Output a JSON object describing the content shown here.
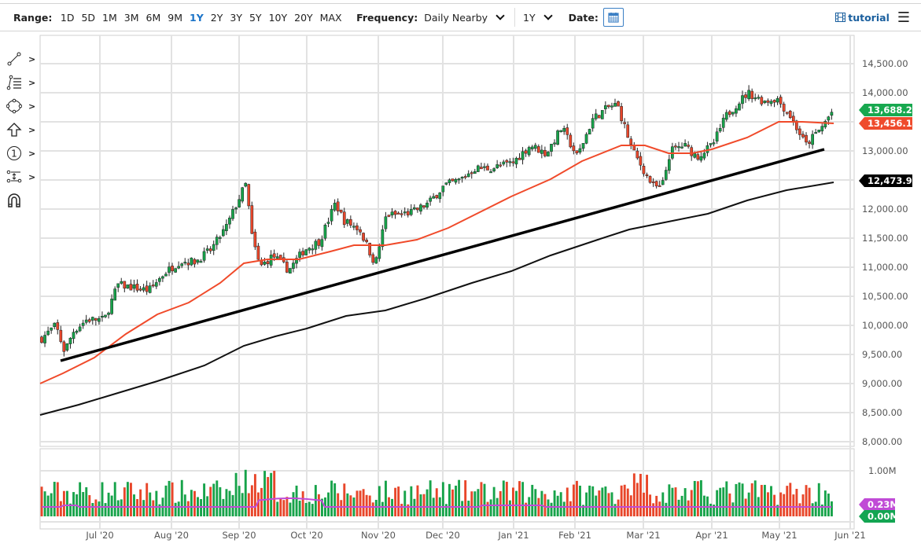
{
  "toolbar": {
    "range_label": "Range:",
    "ranges": [
      "1D",
      "5D",
      "1M",
      "3M",
      "6M",
      "9M",
      "1Y",
      "2Y",
      "3Y",
      "5Y",
      "10Y",
      "20Y",
      "MAX"
    ],
    "active_range": "1Y",
    "frequency_label": "Frequency:",
    "frequency_value": "Daily Nearby",
    "period_value": "1Y",
    "date_label": "Date:",
    "calendar_icon": "calendar-icon",
    "tutorial_label": "tutorial",
    "tutorial_icon": "film-icon",
    "menu_icon": "hamburger-menu-icon"
  },
  "left_tools": [
    {
      "name": "trendline-tool",
      "icon": "line-segment-icon"
    },
    {
      "name": "fibonacci-tool",
      "icon": "fib-lines-icon"
    },
    {
      "name": "shapes-tool",
      "icon": "ellipse-nodes-icon"
    },
    {
      "name": "arrow-tool",
      "icon": "up-arrow-icon"
    },
    {
      "name": "annotation-tool",
      "icon": "numbered-circle-icon"
    },
    {
      "name": "measure-tool",
      "icon": "measure-icon"
    },
    {
      "name": "magnet-tool",
      "icon": "magnet-icon"
    }
  ],
  "colors": {
    "up": "#17a34a",
    "down": "#e8462a",
    "ma_short": "#f04a2a",
    "ma_long": "#111111",
    "trendline": "#000000",
    "volume_ma": "#c04bd6",
    "grid": "#e2e2e2",
    "last_price_tag": "#17a84f",
    "ma_short_tag": "#ef4b2c",
    "ma_long_tag": "#000000",
    "volume_ma_tag": "#c04bd6",
    "volume_tag": "#13a552"
  },
  "chart_data": {
    "type": "candlestick",
    "title": "",
    "instrument_frequency": "Daily Nearby",
    "range": "1Y",
    "xlabel": "",
    "ylabel": "",
    "ylim": [
      8000,
      14800
    ],
    "y_ticks": [
      "14,500.00",
      "14,000.00",
      "13,500.00",
      "13,000.00",
      "12,500.00",
      "12,000.00",
      "11,500.00",
      "11,000.00",
      "10,500.00",
      "10,000.00",
      "9,500.00",
      "9,000.00",
      "8,500.00",
      "8,000.00"
    ],
    "x_ticks": [
      "Jul '20",
      "Aug '20",
      "Sep '20",
      "Oct '20",
      "Nov '20",
      "Dec '20",
      "Jan '21",
      "Feb '21",
      "Mar '21",
      "Apr '21",
      "May '21",
      "Jun '21"
    ],
    "grid": true,
    "price_tags": [
      {
        "label": "13,688.25",
        "series": "last price",
        "value": 13688.25
      },
      {
        "label": "13,456.13",
        "series": "short moving average",
        "value": 13456.13
      },
      {
        "label": "12,473.92",
        "series": "long moving average",
        "value": 12473.92
      }
    ],
    "close_path": [
      [
        "2020-06-01",
        9750
      ],
      [
        "2020-06-08",
        10000
      ],
      [
        "2020-06-12",
        9550
      ],
      [
        "2020-06-16",
        9900
      ],
      [
        "2020-06-22",
        10100
      ],
      [
        "2020-06-30",
        10100
      ],
      [
        "2020-07-06",
        10700
      ],
      [
        "2020-07-13",
        10650
      ],
      [
        "2020-07-20",
        10600
      ],
      [
        "2020-07-27",
        10900
      ],
      [
        "2020-08-03",
        11100
      ],
      [
        "2020-08-10",
        11100
      ],
      [
        "2020-08-17",
        11300
      ],
      [
        "2020-08-24",
        11700
      ],
      [
        "2020-08-31",
        12300
      ],
      [
        "2020-09-02",
        12450
      ],
      [
        "2020-09-04",
        11600
      ],
      [
        "2020-09-08",
        11000
      ],
      [
        "2020-09-14",
        11200
      ],
      [
        "2020-09-21",
        10950
      ],
      [
        "2020-09-28",
        11300
      ],
      [
        "2020-10-05",
        11450
      ],
      [
        "2020-10-12",
        12100
      ],
      [
        "2020-10-16",
        11800
      ],
      [
        "2020-10-23",
        11650
      ],
      [
        "2020-10-30",
        11050
      ],
      [
        "2020-11-04",
        11900
      ],
      [
        "2020-11-09",
        11900
      ],
      [
        "2020-11-16",
        11950
      ],
      [
        "2020-11-23",
        12100
      ],
      [
        "2020-11-30",
        12400
      ],
      [
        "2020-12-07",
        12500
      ],
      [
        "2020-12-14",
        12700
      ],
      [
        "2020-12-21",
        12700
      ],
      [
        "2020-12-31",
        12800
      ],
      [
        "2021-01-08",
        13100
      ],
      [
        "2021-01-15",
        12950
      ],
      [
        "2021-01-22",
        13400
      ],
      [
        "2021-01-29",
        12900
      ],
      [
        "2021-02-05",
        13550
      ],
      [
        "2021-02-12",
        13750
      ],
      [
        "2021-02-16",
        13800
      ],
      [
        "2021-02-23",
        13000
      ],
      [
        "2021-02-26",
        12800
      ],
      [
        "2021-03-04",
        12400
      ],
      [
        "2021-03-08",
        12350
      ],
      [
        "2021-03-12",
        13000
      ],
      [
        "2021-03-18",
        13100
      ],
      [
        "2021-03-24",
        12900
      ],
      [
        "2021-03-31",
        13100
      ],
      [
        "2021-04-06",
        13600
      ],
      [
        "2021-04-12",
        13850
      ],
      [
        "2021-04-16",
        14000
      ],
      [
        "2021-04-23",
        13850
      ],
      [
        "2021-04-29",
        13900
      ],
      [
        "2021-05-05",
        13600
      ],
      [
        "2021-05-12",
        13100
      ],
      [
        "2021-05-19",
        13400
      ],
      [
        "2021-05-24",
        13688
      ]
    ],
    "series": [
      {
        "name": "Short moving average (red)",
        "values_start": 9000,
        "values_end": 13456.13
      },
      {
        "name": "Long moving average (black)",
        "values_start": 8460,
        "values_end": 12473.92
      },
      {
        "name": "Trendline",
        "from": [
          "2020-06-12",
          9400
        ],
        "to": [
          "2021-05-20",
          13000
        ]
      }
    ],
    "volume": {
      "y_ticks": [
        "1.00M"
      ],
      "volume_ma_label": "0.23M",
      "last_volume_label": "0.00M",
      "typical_range": [
        0.15,
        1.05
      ]
    }
  }
}
